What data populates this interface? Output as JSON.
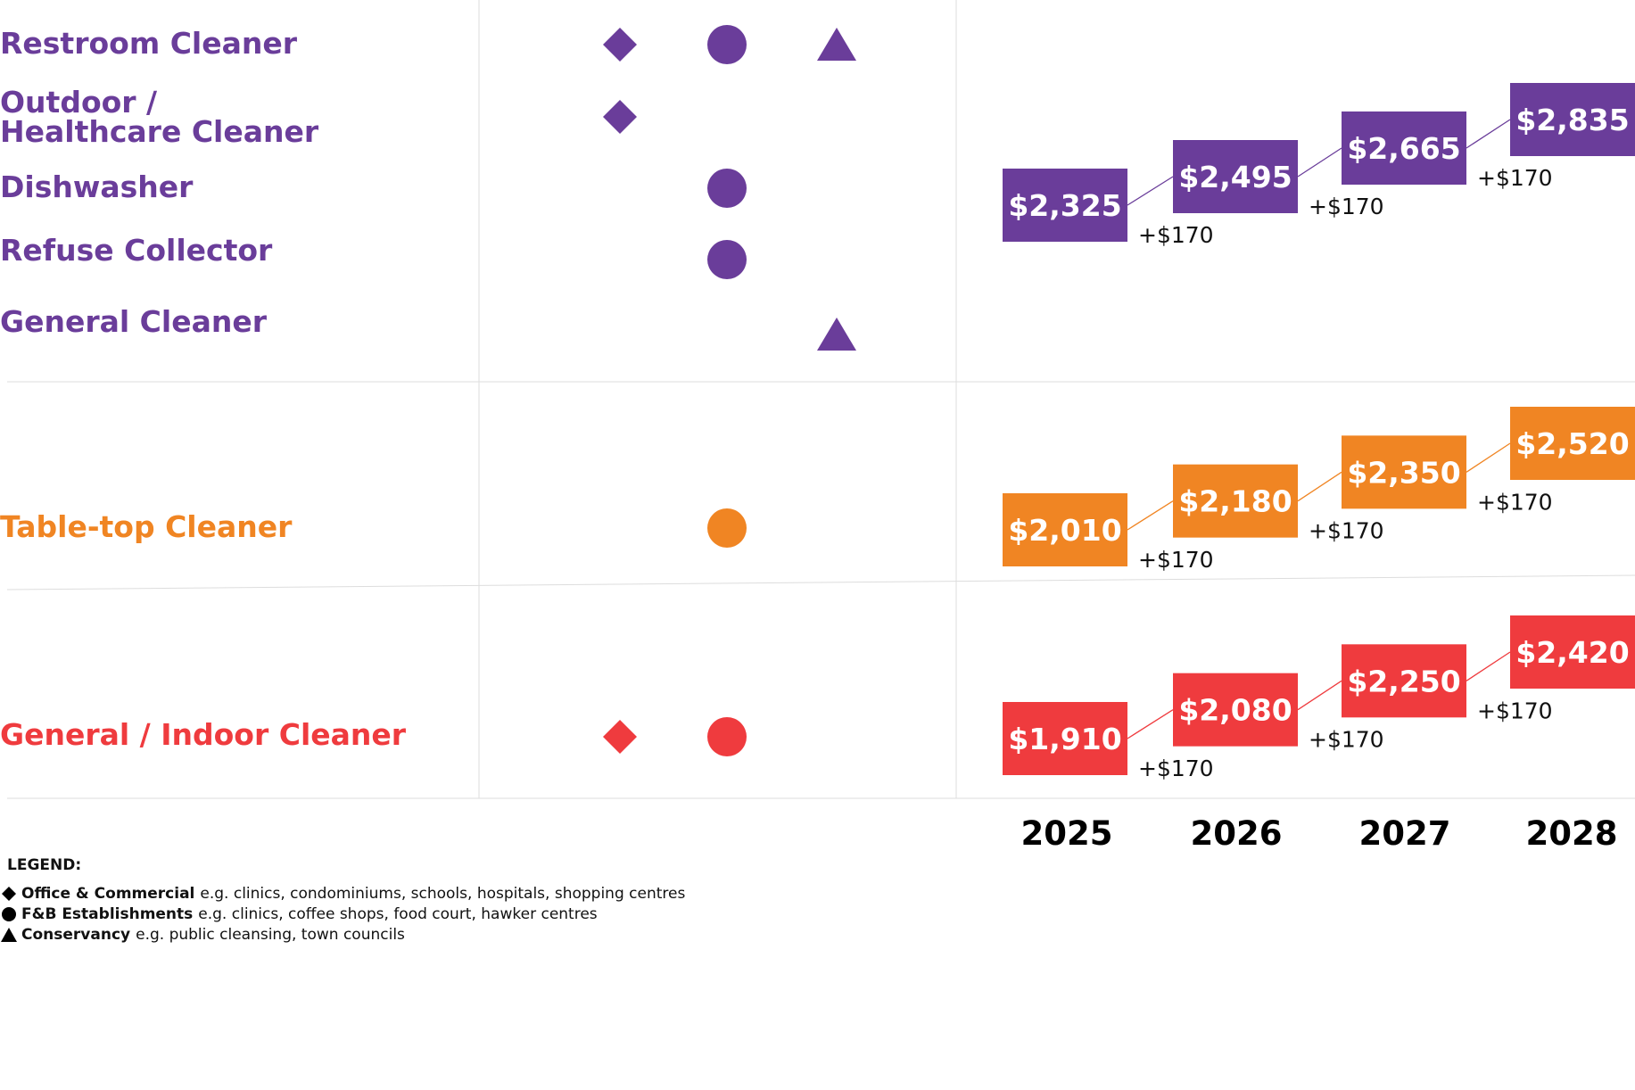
{
  "colors": {
    "purple": "#6a3d9a",
    "orange": "#f08523",
    "red": "#ef3b3e",
    "grid": "#dddddd"
  },
  "chart_data": {
    "type": "table",
    "years": [
      "2025",
      "2026",
      "2027",
      "2028"
    ],
    "groups": [
      {
        "color": "purple",
        "jobs": [
          {
            "name": "Restroom Cleaner",
            "sectors": [
              "office",
              "fnb",
              "conservancy"
            ]
          },
          {
            "name": "Outdoor /",
            "name2": "Healthcare Cleaner",
            "sectors": [
              "office"
            ]
          },
          {
            "name": "Dishwasher",
            "sectors": [
              "fnb"
            ]
          },
          {
            "name": "Refuse Collector",
            "sectors": [
              "fnb"
            ]
          },
          {
            "name": "General Cleaner",
            "sectors": [
              "conservancy"
            ]
          }
        ],
        "wages": [
          {
            "year": "2025",
            "value": 2325,
            "label": "$2,325"
          },
          {
            "year": "2026",
            "value": 2495,
            "label": "$2,495",
            "increase": "+$170"
          },
          {
            "year": "2027",
            "value": 2665,
            "label": "$2,665",
            "increase": "+$170"
          },
          {
            "year": "2028",
            "value": 2835,
            "label": "$2,835",
            "increase": "+$170"
          }
        ]
      },
      {
        "color": "orange",
        "jobs": [
          {
            "name": "Table-top Cleaner",
            "sectors": [
              "fnb"
            ]
          }
        ],
        "wages": [
          {
            "year": "2025",
            "value": 2010,
            "label": "$2,010"
          },
          {
            "year": "2026",
            "value": 2180,
            "label": "$2,180",
            "increase": "+$170"
          },
          {
            "year": "2027",
            "value": 2350,
            "label": "$2,350",
            "increase": "+$170"
          },
          {
            "year": "2028",
            "value": 2520,
            "label": "$2,520",
            "increase": "+$170"
          }
        ]
      },
      {
        "color": "red",
        "jobs": [
          {
            "name": "General / Indoor Cleaner",
            "sectors": [
              "office",
              "fnb"
            ]
          }
        ],
        "wages": [
          {
            "year": "2025",
            "value": 1910,
            "label": "$1,910"
          },
          {
            "year": "2026",
            "value": 2080,
            "label": "$2,080",
            "increase": "+$170"
          },
          {
            "year": "2027",
            "value": 2250,
            "label": "$2,250",
            "increase": "+$170"
          },
          {
            "year": "2028",
            "value": 2420,
            "label": "$2,420",
            "increase": "+$170"
          }
        ]
      }
    ]
  },
  "legend": {
    "title": "LEGEND:",
    "items": [
      {
        "icon": "diamond-icon",
        "name": "Office & Commercial",
        "desc": "e.g. clinics, condominiums, schools, hospitals, shopping centres"
      },
      {
        "icon": "circle-icon",
        "name": "F&B Establishments",
        "desc": "e.g. clinics, coffee shops, food court, hawker centres"
      },
      {
        "icon": "triangle-icon",
        "name": "Conservancy",
        "desc": "e.g. public cleansing, town councils"
      }
    ]
  }
}
